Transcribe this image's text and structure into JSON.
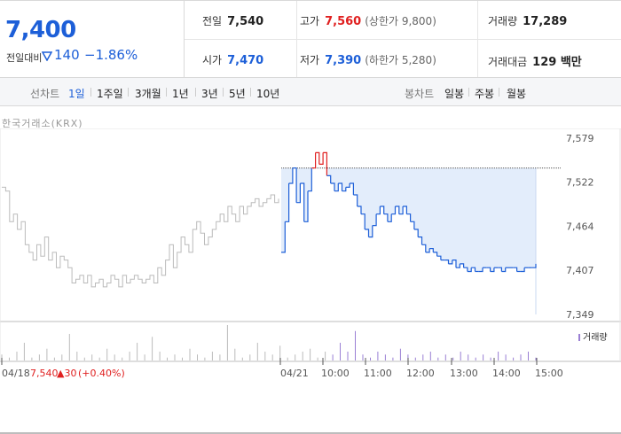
{
  "summary": {
    "price": "7,400",
    "change_label": "전일대비",
    "change_amount": "140",
    "change_pct": "−1.86%",
    "prev_close_label": "전일",
    "prev_close": "7,540",
    "open_label": "시가",
    "open": "7,470",
    "high_label": "고가",
    "high": "7,560",
    "upper_limit": "(상한가 9,800)",
    "low_label": "저가",
    "low": "7,390",
    "lower_limit": "(하한가 5,280)",
    "volume_label": "거래량",
    "volume": "17,289",
    "amount_label": "거래대금",
    "amount": "129 백만"
  },
  "toolbar": {
    "line_label": "선차트",
    "periods": [
      "1일",
      "1주일",
      "3개월",
      "1년",
      "3년",
      "5년",
      "10년"
    ],
    "active_period": "1일",
    "candle_label": "봉차트",
    "candle_periods": [
      "일봉",
      "주봉",
      "월봉"
    ]
  },
  "source": "한국거래소(KRX)",
  "volume_legend": "거래량",
  "prev_day": {
    "date": "04/18",
    "close": "7,540",
    "change": "▲30",
    "pct": "(+0.40%)"
  },
  "colors": {
    "up": "#e02020",
    "down": "#1d5fd8",
    "prev_line": "#bbbbbb",
    "volume": "#9a7fd4",
    "fill": "#e3edfb"
  },
  "chart_data": {
    "type": "line",
    "y_ticks": [
      "7,579",
      "7,522",
      "7,464",
      "7,407",
      "7,349"
    ],
    "ylim": [
      7349,
      7579
    ],
    "x_tick_labels": [
      "04/21",
      "10:00",
      "11:00",
      "12:00",
      "13:00",
      "14:00",
      "15:00"
    ],
    "prev_close_line": 7540,
    "series": [
      {
        "name": "04/18",
        "values": [
          7515,
          7510,
          7470,
          7480,
          7460,
          7470,
          7440,
          7430,
          7420,
          7440,
          7425,
          7450,
          7420,
          7430,
          7410,
          7425,
          7420,
          7410,
          7390,
          7395,
          7400,
          7390,
          7400,
          7385,
          7390,
          7395,
          7385,
          7390,
          7400,
          7395,
          7385,
          7400,
          7390,
          7395,
          7400,
          7395,
          7390,
          7395,
          7400,
          7390,
          7410,
          7400,
          7420,
          7440,
          7410,
          7430,
          7450,
          7440,
          7430,
          7460,
          7470,
          7455,
          7440,
          7450,
          7460,
          7470,
          7480,
          7470,
          7490,
          7480,
          7470,
          7490,
          7480,
          7490,
          7495,
          7500,
          7490,
          7495,
          7500,
          7505,
          7495,
          7500
        ]
      },
      {
        "name": "04/21",
        "values": [
          7430,
          7470,
          7520,
          7540,
          7495,
          7520,
          7470,
          7510,
          7540,
          7560,
          7545,
          7560,
          7530,
          7520,
          7510,
          7520,
          7510,
          7515,
          7520,
          7505,
          7490,
          7480,
          7460,
          7450,
          7465,
          7480,
          7490,
          7480,
          7470,
          7480,
          7490,
          7480,
          7490,
          7480,
          7470,
          7460,
          7450,
          7440,
          7430,
          7435,
          7430,
          7425,
          7420,
          7420,
          7415,
          7420,
          7410,
          7415,
          7410,
          7405,
          7410,
          7405,
          7405,
          7410,
          7410,
          7405,
          7410,
          7410,
          7405,
          7410,
          7410,
          7410,
          7405,
          7405,
          7410,
          7410,
          7410,
          7415
        ]
      }
    ],
    "volume_bars": [
      2,
      1,
      3,
      6,
      1,
      2,
      4,
      1,
      2,
      9,
      3,
      1,
      2,
      1,
      4,
      2,
      1,
      3,
      6,
      2,
      8,
      3,
      1,
      2,
      1,
      4,
      2,
      1,
      3,
      2,
      12,
      4,
      1,
      2,
      6,
      3,
      2,
      5,
      1,
      2,
      3,
      4,
      1,
      3,
      2,
      6,
      3,
      10,
      2,
      1,
      3,
      2,
      1,
      4,
      2,
      1,
      2,
      3,
      1,
      2,
      1,
      3,
      2,
      1,
      2,
      1,
      3,
      2,
      1,
      2,
      3,
      1
    ]
  }
}
